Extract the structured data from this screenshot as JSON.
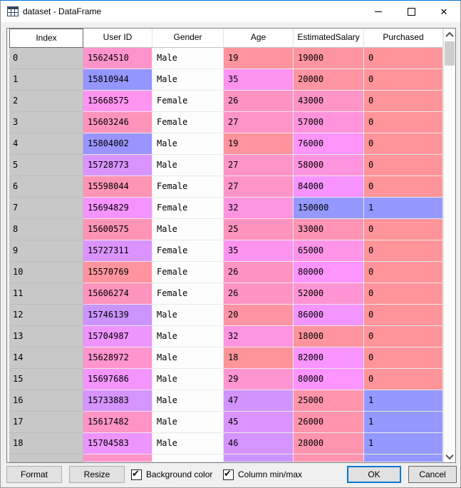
{
  "window": {
    "title": "dataset - DataFrame",
    "icons": {
      "app": "table-grid-icon",
      "minimize": "minimize-icon",
      "maximize": "maximize-icon",
      "close_glyph": "✕"
    }
  },
  "colors": {
    "accent": "#0078d7",
    "index_bg": "#c8c8c8",
    "gender_bg": "#fdfdfd",
    "purchased_0": "#ff949a",
    "purchased_1": "#9498ff"
  },
  "table": {
    "headers": [
      "Index",
      "User ID",
      "Gender",
      "Age",
      "EstimatedSalary",
      "Purchased"
    ],
    "index_bg": "#c8c8c8",
    "gender_bg": "#fdfdfd",
    "rows": [
      {
        "index": "0",
        "user_id": "15624510",
        "gender": "Male",
        "age": "19",
        "salary": "19000",
        "purchased": "0",
        "colors": {
          "user_id": "#ff94cc",
          "age": "#ff949f",
          "salary": "#ff94a1",
          "purchased": "#ff949a"
        }
      },
      {
        "index": "1",
        "user_id": "15810944",
        "gender": "Male",
        "age": "35",
        "salary": "20000",
        "purchased": "0",
        "colors": {
          "user_id": "#9495ff",
          "age": "#ff94f0",
          "salary": "#ff94a2",
          "purchased": "#ff949a"
        }
      },
      {
        "index": "2",
        "user_id": "15668575",
        "gender": "Female",
        "age": "26",
        "salary": "43000",
        "purchased": "0",
        "colors": {
          "user_id": "#ff94f1",
          "age": "#ff94c3",
          "salary": "#ff94c6",
          "purchased": "#ff949a"
        }
      },
      {
        "index": "3",
        "user_id": "15603246",
        "gender": "Female",
        "age": "27",
        "salary": "57000",
        "purchased": "0",
        "colors": {
          "user_id": "#ff94ba",
          "age": "#ff94c8",
          "salary": "#ff94dc",
          "purchased": "#ff949a"
        }
      },
      {
        "index": "4",
        "user_id": "15804002",
        "gender": "Male",
        "age": "19",
        "salary": "76000",
        "purchased": "0",
        "colors": {
          "user_id": "#9994ff",
          "age": "#ff949f",
          "salary": "#ff94fa",
          "purchased": "#ff949a"
        }
      },
      {
        "index": "5",
        "user_id": "15728773",
        "gender": "Male",
        "age": "27",
        "salary": "58000",
        "purchased": "0",
        "colors": {
          "user_id": "#d994ff",
          "age": "#ff94c8",
          "salary": "#ff94de",
          "purchased": "#ff949a"
        }
      },
      {
        "index": "6",
        "user_id": "15598044",
        "gender": "Female",
        "age": "27",
        "salary": "84000",
        "purchased": "0",
        "colors": {
          "user_id": "#ff94b5",
          "age": "#ff94c8",
          "salary": "#f794ff",
          "purchased": "#ff949a"
        }
      },
      {
        "index": "7",
        "user_id": "15694829",
        "gender": "Female",
        "age": "32",
        "salary": "150000",
        "purchased": "1",
        "colors": {
          "user_id": "#f694ff",
          "age": "#ff94e1",
          "salary": "#9498ff",
          "purchased": "#9498ff"
        }
      },
      {
        "index": "8",
        "user_id": "15600575",
        "gender": "Male",
        "age": "25",
        "salary": "33000",
        "purchased": "0",
        "colors": {
          "user_id": "#ff94b7",
          "age": "#ff94be",
          "salary": "#ff94b7",
          "purchased": "#ff949a"
        }
      },
      {
        "index": "9",
        "user_id": "15727311",
        "gender": "Female",
        "age": "35",
        "salary": "65000",
        "purchased": "0",
        "colors": {
          "user_id": "#db94ff",
          "age": "#ff94f0",
          "salary": "#ff94e9",
          "purchased": "#ff949a"
        }
      },
      {
        "index": "10",
        "user_id": "15570769",
        "gender": "Female",
        "age": "26",
        "salary": "80000",
        "purchased": "0",
        "colors": {
          "user_id": "#ff949e",
          "age": "#ff94c3",
          "salary": "#fe94ff",
          "purchased": "#ff949a"
        }
      },
      {
        "index": "11",
        "user_id": "15606274",
        "gender": "Female",
        "age": "26",
        "salary": "52000",
        "purchased": "0",
        "colors": {
          "user_id": "#ff94bc",
          "age": "#ff94c3",
          "salary": "#ff94d4",
          "purchased": "#ff949a"
        }
      },
      {
        "index": "12",
        "user_id": "15746139",
        "gender": "Male",
        "age": "20",
        "salary": "86000",
        "purchased": "0",
        "colors": {
          "user_id": "#cb94ff",
          "age": "#ff94a4",
          "salary": "#f494ff",
          "purchased": "#ff949a"
        }
      },
      {
        "index": "13",
        "user_id": "15704987",
        "gender": "Male",
        "age": "32",
        "salary": "18000",
        "purchased": "0",
        "colors": {
          "user_id": "#ee94ff",
          "age": "#ff94e1",
          "salary": "#ff949f",
          "purchased": "#ff949a"
        }
      },
      {
        "index": "14",
        "user_id": "15628972",
        "gender": "Male",
        "age": "18",
        "salary": "82000",
        "purchased": "0",
        "colors": {
          "user_id": "#ff94cf",
          "age": "#ff949a",
          "salary": "#fa94ff",
          "purchased": "#ff949a"
        }
      },
      {
        "index": "15",
        "user_id": "15697686",
        "gender": "Male",
        "age": "29",
        "salary": "80000",
        "purchased": "0",
        "colors": {
          "user_id": "#f494ff",
          "age": "#ff94d2",
          "salary": "#fe94ff",
          "purchased": "#ff949a"
        }
      },
      {
        "index": "16",
        "user_id": "15733883",
        "gender": "Male",
        "age": "47",
        "salary": "25000",
        "purchased": "1",
        "colors": {
          "user_id": "#d594ff",
          "age": "#d194ff",
          "salary": "#ff94aa",
          "purchased": "#9498ff"
        }
      },
      {
        "index": "17",
        "user_id": "15617482",
        "gender": "Male",
        "age": "45",
        "salary": "26000",
        "purchased": "1",
        "colors": {
          "user_id": "#ff94c6",
          "age": "#db94ff",
          "salary": "#ff94ac",
          "purchased": "#9498ff"
        }
      },
      {
        "index": "18",
        "user_id": "15704583",
        "gender": "Male",
        "age": "46",
        "salary": "28000",
        "purchased": "1",
        "colors": {
          "user_id": "#ee94ff",
          "age": "#d694ff",
          "salary": "#ff94af",
          "purchased": "#9498ff"
        }
      }
    ],
    "partial_row_colors": {
      "user_id": "#ff94c9",
      "gender": "#fdfdfd",
      "age": "#cc94ff",
      "salary": "#ff94b0",
      "purchased": "#9498ff"
    }
  },
  "footer": {
    "format_label": "Format",
    "resize_label": "Resize",
    "checkboxes": [
      {
        "label": "Background color",
        "checked": true
      },
      {
        "label": "Column min/max",
        "checked": true
      }
    ],
    "ok_label": "OK",
    "cancel_label": "Cancel"
  }
}
